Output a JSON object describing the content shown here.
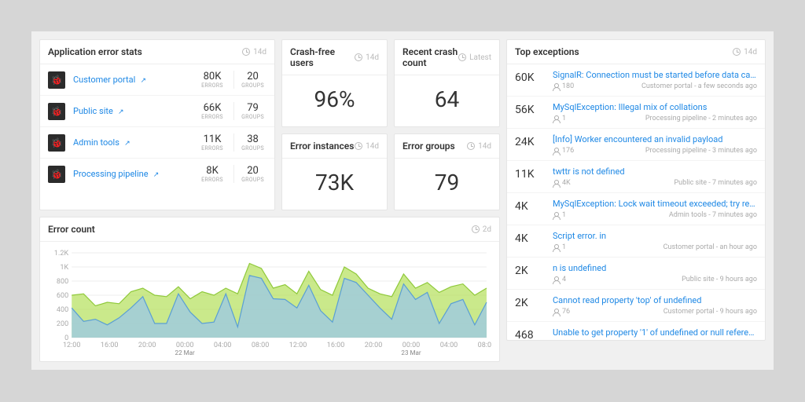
{
  "app_stats": {
    "title": "Application error stats",
    "period": "14d",
    "rows": [
      {
        "name": "Customer portal",
        "errors": "80K",
        "groups": "20",
        "icon": "🐞"
      },
      {
        "name": "Public site",
        "errors": "66K",
        "groups": "79",
        "icon": "🐞"
      },
      {
        "name": "Admin tools",
        "errors": "11K",
        "groups": "38",
        "icon": "🐞"
      },
      {
        "name": "Processing pipeline",
        "errors": "8K",
        "groups": "20",
        "icon": "🐞"
      }
    ],
    "errors_label": "ERRORS",
    "groups_label": "GROUPS"
  },
  "kpis": {
    "crash_free": {
      "title": "Crash-free users",
      "period": "14d",
      "value": "96%"
    },
    "recent_crash": {
      "title": "Recent crash count",
      "period": "Latest",
      "value": "64"
    },
    "error_instances": {
      "title": "Error instances",
      "period": "14d",
      "value": "73K"
    },
    "error_groups": {
      "title": "Error groups",
      "period": "14d",
      "value": "79"
    }
  },
  "top_exceptions": {
    "title": "Top exceptions",
    "period": "14d",
    "rows": [
      {
        "count": "60K",
        "msg": "SignalR: Connection must be started before data can be...",
        "users": "180",
        "meta": "Customer portal - a few seconds ago"
      },
      {
        "count": "56K",
        "msg": "MySqlException: Illegal mix of collations",
        "users": "1",
        "meta": "Processing pipeline - 2 minutes ago"
      },
      {
        "count": "24K",
        "msg": "[Info] Worker encountered an invalid payload",
        "users": "176",
        "meta": "Processing pipeline - 3 minutes ago"
      },
      {
        "count": "11K",
        "msg": "twttr is not defined",
        "users": "4K",
        "meta": "Public site - 7 minutes ago"
      },
      {
        "count": "4K",
        "msg": "MySqlException: Lock wait timeout exceeded; try restart...",
        "users": "1",
        "meta": "Admin tools - 7 minutes ago"
      },
      {
        "count": "4K",
        "msg": "Script error. in",
        "users": "1",
        "meta": "Customer portal - an hour ago"
      },
      {
        "count": "2K",
        "msg": "n is undefined",
        "users": "4",
        "meta": "Public site - 9 hours ago"
      },
      {
        "count": "2K",
        "msg": "Cannot read property 'top' of undefined",
        "users": "76",
        "meta": "Customer portal - 9 hours ago"
      },
      {
        "count": "468",
        "msg": "Unable to get property '1' of undefined or null reference",
        "users": "",
        "meta": ""
      }
    ]
  },
  "error_chart": {
    "title": "Error count",
    "period": "2d",
    "type": "area",
    "colors": {
      "series1_fill": "#b3e05a",
      "series1_stroke": "#8fc93a",
      "series2_fill": "#9ac7e8",
      "series2_stroke": "#5a9fd4",
      "grid": "#eeeeee",
      "axis_text": "#aaaaaa"
    },
    "y_ticks": [
      "0",
      "200",
      "400",
      "600",
      "800",
      "1K",
      "1.2K"
    ],
    "y_max": 1200,
    "x_ticks": [
      "12:00",
      "16:00",
      "20:00",
      "00:00",
      "04:00",
      "08:00",
      "12:00",
      "16:00",
      "20:00",
      "00:00",
      "04:00",
      "08:00"
    ],
    "x_sub": [
      {
        "idx": 3,
        "label": "22 Mar"
      },
      {
        "idx": 9,
        "label": "23 Mar"
      }
    ],
    "series1": [
      600,
      620,
      450,
      500,
      480,
      650,
      700,
      600,
      580,
      720,
      550,
      650,
      600,
      700,
      620,
      1050,
      980,
      700,
      750,
      620,
      940,
      680,
      600,
      1000,
      900,
      700,
      620,
      580,
      900,
      700,
      780,
      640,
      720,
      760,
      600,
      700
    ],
    "series2": [
      420,
      230,
      260,
      180,
      280,
      420,
      580,
      200,
      200,
      620,
      360,
      200,
      220,
      620,
      150,
      880,
      840,
      550,
      540,
      420,
      740,
      380,
      220,
      840,
      780,
      600,
      420,
      260,
      760,
      540,
      640,
      200,
      480,
      540,
      180,
      500
    ]
  }
}
